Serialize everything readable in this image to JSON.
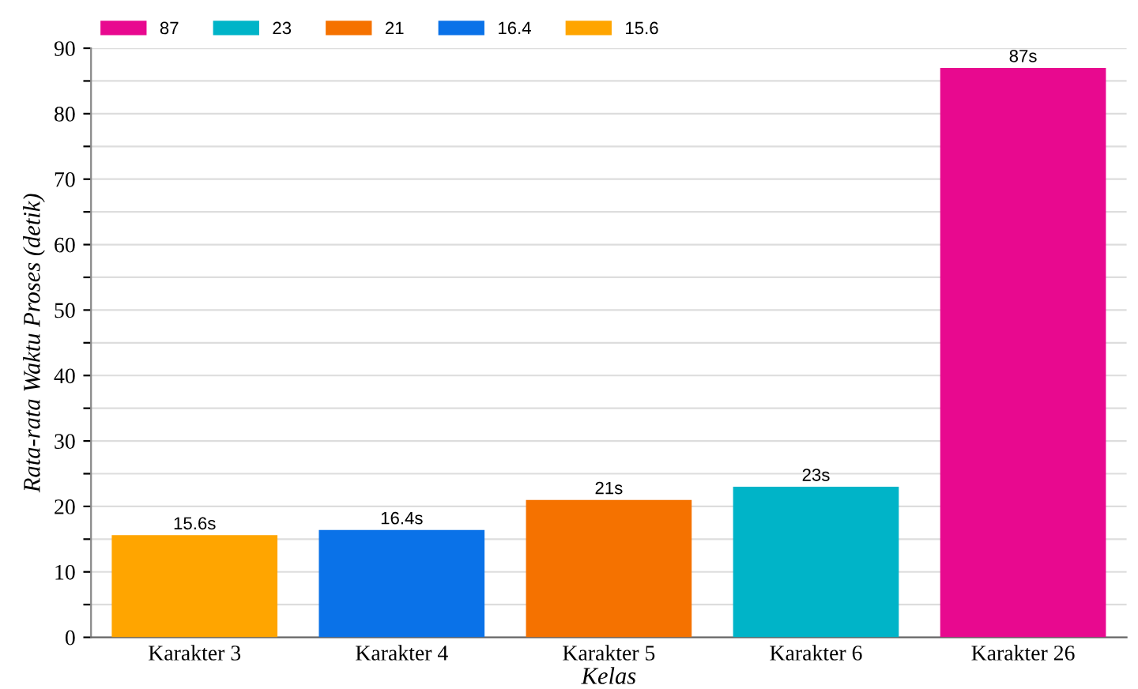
{
  "chart_data": {
    "type": "bar",
    "xlabel": "Kelas",
    "ylabel": "Rata-rata Waktu Proses (detik)",
    "categories": [
      "Karakter 3",
      "Karakter 4",
      "Karakter 5",
      "Karakter 6",
      "Karakter 26"
    ],
    "series": [
      {
        "name": "87",
        "color": "#e8098f",
        "values": [
          null,
          null,
          null,
          null,
          87
        ],
        "value_labels": [
          null,
          null,
          null,
          null,
          "87s"
        ]
      },
      {
        "name": "23",
        "color": "#00b4c8",
        "values": [
          null,
          null,
          null,
          23,
          null
        ],
        "value_labels": [
          null,
          null,
          null,
          "23s",
          null
        ]
      },
      {
        "name": "21",
        "color": "#f57200",
        "values": [
          null,
          null,
          21,
          null,
          null
        ],
        "value_labels": [
          null,
          null,
          "21s",
          null,
          null
        ]
      },
      {
        "name": "16.4",
        "color": "#0a72e8",
        "values": [
          null,
          16.4,
          null,
          null,
          null
        ],
        "value_labels": [
          null,
          "16.4s",
          null,
          null,
          null
        ]
      },
      {
        "name": "15.6",
        "color": "#ffa500",
        "values": [
          15.6,
          null,
          null,
          null,
          null
        ],
        "value_labels": [
          "15.6s",
          null,
          null,
          null,
          null
        ]
      }
    ],
    "ylim": [
      0,
      90
    ],
    "yticks": [
      0,
      {
        "value": 5,
        "label": null
      },
      10,
      {
        "value": 15,
        "label": null
      },
      20,
      {
        "value": 25,
        "label": null
      },
      30,
      {
        "value": 35,
        "label": null
      },
      40,
      {
        "value": 45,
        "label": null
      },
      50,
      {
        "value": 55,
        "label": null
      },
      60,
      {
        "value": 65,
        "label": null
      },
      70,
      {
        "value": 75,
        "label": null
      },
      80,
      {
        "value": 85,
        "label": null
      },
      90
    ],
    "grid": "y",
    "legend": "top left"
  }
}
